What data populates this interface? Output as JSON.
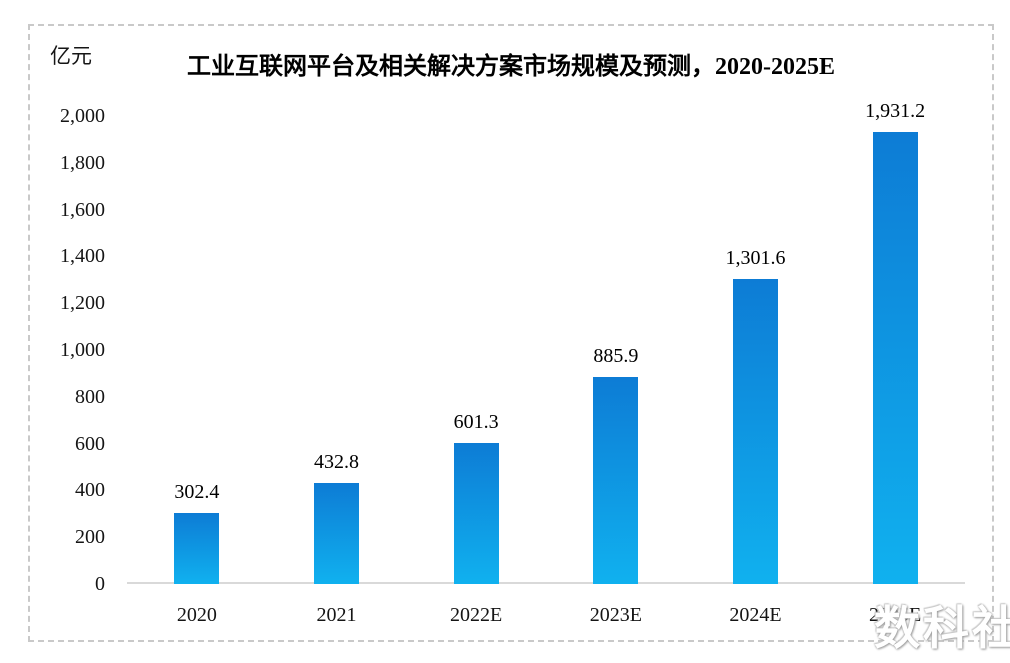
{
  "chart_data": {
    "type": "bar",
    "title": "工业互联网平台及相关解决方案市场规模及预测，2020-2025E",
    "unit_label": "亿元",
    "xlabel": "",
    "ylabel": "亿元",
    "categories": [
      "2020",
      "2021",
      "2022E",
      "2023E",
      "2024E",
      "2025E"
    ],
    "values": [
      302.4,
      432.8,
      601.3,
      885.9,
      1301.6,
      1931.2
    ],
    "value_labels": [
      "302.4",
      "432.8",
      "601.3",
      "885.9",
      "1,301.6",
      "1,931.2"
    ],
    "ylim": [
      0,
      2000
    ],
    "ytick_interval": 200,
    "ytick_labels": [
      "0",
      "200",
      "400",
      "600",
      "800",
      "1,000",
      "1,200",
      "1,400",
      "1,600",
      "1,800",
      "2,000"
    ],
    "grid": false,
    "legend": "none",
    "bar_gradient_top": "#0d7cd5",
    "bar_gradient_bottom": "#10b1ef"
  },
  "watermark": {
    "text": "数科社"
  },
  "colors": {
    "axis_line": "#d9d9d9",
    "frame_border": "#c9c9c9",
    "label_text": "#000000",
    "background": "#ffffff"
  }
}
